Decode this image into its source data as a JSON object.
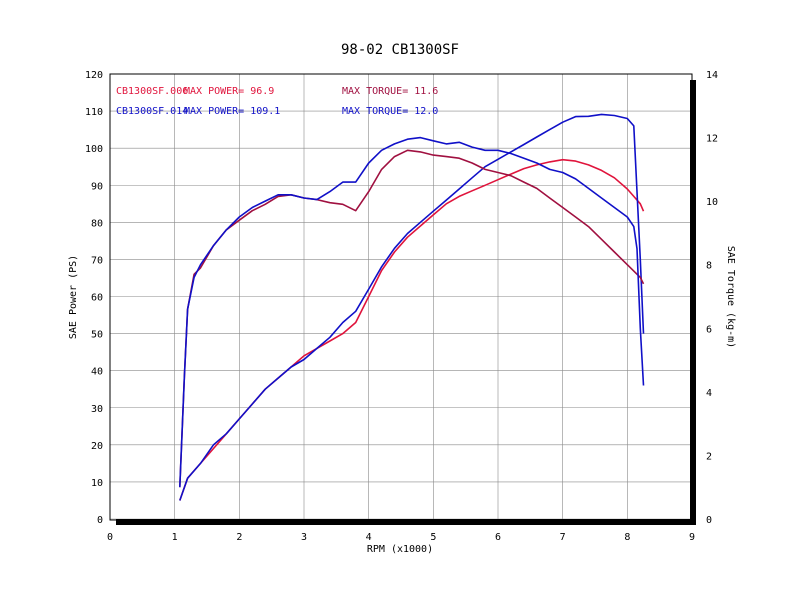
{
  "chart_data": {
    "type": "line",
    "title": "98-02 CB1300SF",
    "xlabel": "RPM (x1000)",
    "ylabel_left": "SAE Power (PS)",
    "ylabel_right": "SAE Torque (kg-m)",
    "xlim": [
      0,
      9
    ],
    "ylim_left": [
      0,
      120
    ],
    "ylim_right": [
      0,
      14
    ],
    "x_ticks": [
      "0",
      "1",
      "2",
      "3",
      "4",
      "5",
      "6",
      "7",
      "8",
      "9"
    ],
    "y_ticks_left": [
      "0",
      "10",
      "20",
      "30",
      "40",
      "50",
      "60",
      "70",
      "80",
      "90",
      "100",
      "110",
      "120"
    ],
    "y_ticks_right": [
      "0",
      "2",
      "4",
      "6",
      "8",
      "10",
      "12",
      "14"
    ],
    "grid": true,
    "legend": [
      {
        "label": "CB1300SF.006",
        "power_text": "MAX POWER= 96.9",
        "torque_text": "MAX TORQUE= 11.6",
        "color": "#e0143c"
      },
      {
        "label": "CB1300SF.014",
        "power_text": "MAX POWER= 109.1",
        "torque_text": "MAX TORQUE= 12.0",
        "color": "#1010c8"
      }
    ],
    "series": [
      {
        "name": "CB1300SF.006",
        "kind": "power",
        "axis": "left",
        "color": "#e0143c",
        "x": [
          1.08,
          1.2,
          1.4,
          1.6,
          1.8,
          2.0,
          2.2,
          2.4,
          2.6,
          2.8,
          3.0,
          3.2,
          3.4,
          3.6,
          3.8,
          4.0,
          4.2,
          4.4,
          4.6,
          4.8,
          5.0,
          5.2,
          5.4,
          5.6,
          5.8,
          6.0,
          6.2,
          6.4,
          6.6,
          6.8,
          7.0,
          7.2,
          7.4,
          7.6,
          7.8,
          8.0,
          8.1,
          8.2,
          8.25
        ],
        "y": [
          5,
          11,
          15,
          19,
          23,
          27,
          31,
          35,
          38,
          41,
          44,
          46,
          48,
          50,
          53,
          60,
          67,
          72,
          76,
          79,
          82,
          85,
          87,
          88.5,
          90,
          91.5,
          93,
          94.5,
          95.5,
          96.3,
          96.9,
          96.5,
          95.5,
          94,
          92,
          89,
          87,
          85,
          83
        ]
      },
      {
        "name": "CB1300SF.014",
        "kind": "power",
        "axis": "left",
        "color": "#1010c8",
        "x": [
          1.08,
          1.2,
          1.4,
          1.6,
          1.8,
          2.0,
          2.2,
          2.4,
          2.6,
          2.8,
          3.0,
          3.2,
          3.4,
          3.6,
          3.8,
          4.0,
          4.2,
          4.4,
          4.6,
          4.8,
          5.0,
          5.2,
          5.4,
          5.6,
          5.8,
          6.0,
          6.2,
          6.4,
          6.6,
          6.8,
          7.0,
          7.2,
          7.4,
          7.6,
          7.8,
          8.0,
          8.1,
          8.2,
          8.25
        ],
        "y": [
          5,
          11,
          15,
          20,
          23,
          27,
          31,
          35,
          38,
          41,
          43,
          46,
          49,
          53,
          56,
          62,
          68,
          73,
          77,
          80,
          83,
          86,
          89,
          92,
          95,
          97,
          99,
          101,
          103,
          105,
          107,
          108.5,
          108.6,
          109.1,
          108.8,
          108,
          106,
          70,
          50
        ]
      },
      {
        "name": "CB1300SF.006",
        "kind": "torque",
        "axis": "right",
        "color": "#a01040",
        "x": [
          1.08,
          1.15,
          1.2,
          1.3,
          1.4,
          1.6,
          1.8,
          2.0,
          2.2,
          2.4,
          2.6,
          2.8,
          3.0,
          3.2,
          3.4,
          3.6,
          3.8,
          4.0,
          4.2,
          4.4,
          4.6,
          4.8,
          5.0,
          5.2,
          5.4,
          5.6,
          5.8,
          6.0,
          6.2,
          6.4,
          6.6,
          6.8,
          7.0,
          7.2,
          7.4,
          7.6,
          7.8,
          8.0,
          8.1,
          8.2,
          8.25
        ],
        "y": [
          1.0,
          4.5,
          6.6,
          7.7,
          7.9,
          8.6,
          9.1,
          9.4,
          9.7,
          9.9,
          10.15,
          10.2,
          10.1,
          10.05,
          9.95,
          9.9,
          9.7,
          10.3,
          11.0,
          11.4,
          11.6,
          11.55,
          11.45,
          11.4,
          11.35,
          11.2,
          11.0,
          10.9,
          10.8,
          10.6,
          10.4,
          10.1,
          9.8,
          9.5,
          9.2,
          8.8,
          8.4,
          8.0,
          7.8,
          7.6,
          7.4
        ]
      },
      {
        "name": "CB1300SF.014",
        "kind": "torque",
        "axis": "right",
        "color": "#1010c8",
        "x": [
          1.08,
          1.15,
          1.2,
          1.3,
          1.4,
          1.6,
          1.8,
          2.0,
          2.2,
          2.4,
          2.6,
          2.8,
          3.0,
          3.2,
          3.4,
          3.6,
          3.8,
          4.0,
          4.2,
          4.4,
          4.6,
          4.8,
          5.0,
          5.2,
          5.4,
          5.6,
          5.8,
          6.0,
          6.2,
          6.4,
          6.6,
          6.8,
          7.0,
          7.2,
          7.4,
          7.6,
          7.8,
          8.0,
          8.1,
          8.15,
          8.2,
          8.25
        ],
        "y": [
          1.0,
          4.5,
          6.6,
          7.6,
          8.0,
          8.6,
          9.1,
          9.5,
          9.8,
          10.0,
          10.2,
          10.2,
          10.1,
          10.05,
          10.3,
          10.6,
          10.6,
          11.2,
          11.6,
          11.8,
          11.95,
          12.0,
          11.9,
          11.8,
          11.85,
          11.7,
          11.6,
          11.6,
          11.5,
          11.35,
          11.2,
          11.0,
          10.9,
          10.7,
          10.4,
          10.1,
          9.8,
          9.5,
          9.2,
          8.5,
          6.0,
          4.2
        ]
      }
    ]
  }
}
